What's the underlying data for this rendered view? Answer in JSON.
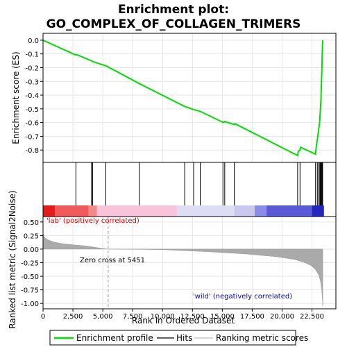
{
  "chart_data": {
    "type": "line",
    "title": "Enrichment plot:\nGO_COMPLEX_OF_COLLAGEN_TRIMERS",
    "panels": {
      "enrichment": {
        "ylabel": "Enrichment score (ES)",
        "ylim": [
          -0.89,
          0.05
        ],
        "yticks": [
          0.0,
          -0.1,
          -0.2,
          -0.3,
          -0.4,
          -0.5,
          -0.6,
          -0.7,
          -0.8
        ],
        "ytick_labels": [
          "0.0",
          "-0.1",
          "-0.2",
          "-0.3",
          "-0.4",
          "-0.5",
          "-0.6",
          "-0.7",
          "-0.8"
        ],
        "grid": true,
        "points": [
          [
            0,
            0.0
          ],
          [
            2750,
            -0.108
          ],
          [
            2800,
            -0.104
          ],
          [
            4050,
            -0.15
          ],
          [
            4150,
            -0.155
          ],
          [
            5300,
            -0.188
          ],
          [
            8100,
            -0.318
          ],
          [
            11800,
            -0.48
          ],
          [
            12600,
            -0.505
          ],
          [
            13150,
            -0.518
          ],
          [
            15100,
            -0.6
          ],
          [
            15200,
            -0.592
          ],
          [
            16000,
            -0.614
          ],
          [
            16050,
            -0.608
          ],
          [
            21300,
            -0.84
          ],
          [
            21350,
            -0.81
          ],
          [
            21500,
            -0.8
          ],
          [
            21550,
            -0.78
          ],
          [
            22800,
            -0.83
          ],
          [
            22850,
            -0.78
          ],
          [
            22950,
            -0.72
          ],
          [
            23050,
            -0.66
          ],
          [
            23150,
            -0.59
          ],
          [
            23200,
            -0.51
          ],
          [
            23250,
            -0.43
          ],
          [
            23280,
            -0.34
          ],
          [
            23320,
            -0.23
          ],
          [
            23350,
            -0.12
          ],
          [
            23390,
            0.0
          ]
        ]
      },
      "hits": {
        "positions": [
          2750,
          4050,
          4150,
          5250,
          8050,
          11850,
          12600,
          13150,
          15050,
          15200,
          16000,
          21300,
          21500,
          22800,
          22950,
          23050,
          23150,
          23200,
          23250,
          23300,
          23350,
          23390
        ]
      },
      "ranking": {
        "ylabel": "Ranked list metric (Signal2Noise)",
        "xlabel": "Rank in Ordered Dataset",
        "xlim": [
          0,
          24500
        ],
        "ylim": [
          -1.1,
          0.6
        ],
        "yticks": [
          0.5,
          0.25,
          0.0,
          -0.25,
          -0.5,
          -0.75,
          -1.0
        ],
        "ytick_labels": [
          "0.50",
          "0.25",
          "0.00",
          "-0.25",
          "-0.50",
          "-0.75",
          "-1.00"
        ],
        "xticks": [
          0,
          2500,
          5000,
          7500,
          10000,
          12500,
          15000,
          17500,
          20000,
          22500
        ],
        "xtick_labels": [
          "0",
          "2,500",
          "5,000",
          "7,500",
          "10,000",
          "12,500",
          "15,000",
          "17,500",
          "20,000",
          "22,500"
        ],
        "grid": true,
        "zero_cross": 5451,
        "annotations": {
          "positive": "'lab' (positively correlated)",
          "zero_cross": "Zero cross at 5451",
          "negative": "'wild' (negatively correlated)"
        },
        "curve": [
          [
            0,
            0.28
          ],
          [
            150,
            0.21
          ],
          [
            400,
            0.17
          ],
          [
            900,
            0.13
          ],
          [
            1600,
            0.1
          ],
          [
            2500,
            0.08
          ],
          [
            3500,
            0.06
          ],
          [
            4300,
            0.035
          ],
          [
            5000,
            0.01
          ],
          [
            5451,
            0.0
          ],
          [
            10000,
            -0.01
          ],
          [
            14000,
            -0.05
          ],
          [
            17000,
            -0.09
          ],
          [
            19500,
            -0.14
          ],
          [
            21000,
            -0.19
          ],
          [
            21800,
            -0.24
          ],
          [
            22400,
            -0.3
          ],
          [
            22800,
            -0.38
          ],
          [
            23050,
            -0.47
          ],
          [
            23200,
            -0.58
          ],
          [
            23300,
            -0.72
          ],
          [
            23370,
            -0.9
          ],
          [
            23400,
            -1.05
          ]
        ]
      }
    },
    "legend": {
      "placement": "bottom",
      "entries": [
        {
          "label": "Enrichment profile",
          "color": "#00dd00"
        },
        {
          "label": "Hits",
          "color": "#000000"
        },
        {
          "label": "Ranking metric scores",
          "color": "#bbbbbb"
        }
      ]
    },
    "colors": {
      "enrichment_line": "#00dd00",
      "positive_text": "#dd0000",
      "negative_text": "#0000cc",
      "ranking_fill": "#aaaaaa"
    },
    "heatbar_colors": [
      {
        "from": 0,
        "to": 1000,
        "color": "#e51a1a"
      },
      {
        "from": 1000,
        "to": 3800,
        "color": "#f05a5a"
      },
      {
        "from": 3800,
        "to": 4500,
        "color": "#f38a8a"
      },
      {
        "from": 4500,
        "to": 11200,
        "color": "#f8c4dc"
      },
      {
        "from": 11200,
        "to": 16000,
        "color": "#ddddf5"
      },
      {
        "from": 16000,
        "to": 17700,
        "color": "#c8c8f0"
      },
      {
        "from": 17700,
        "to": 18700,
        "color": "#8c8ce8"
      },
      {
        "from": 18700,
        "to": 22500,
        "color": "#5a5ad8"
      },
      {
        "from": 22500,
        "to": 23500,
        "color": "#2525c0"
      }
    ]
  }
}
